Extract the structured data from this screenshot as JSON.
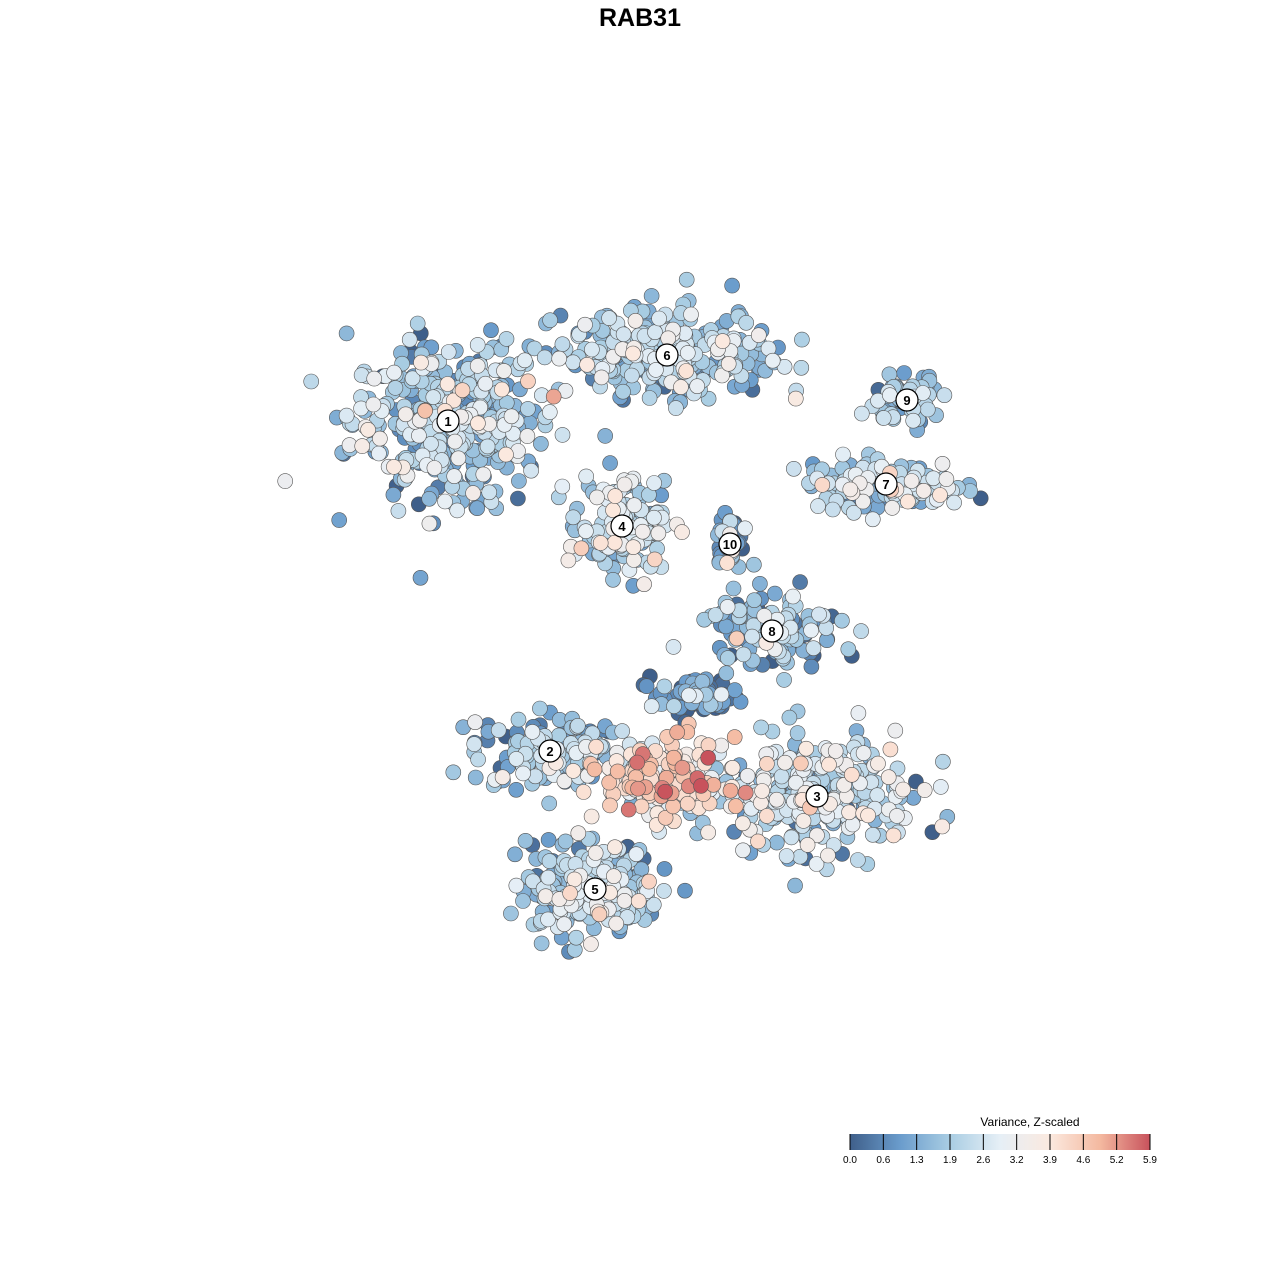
{
  "chart_data": {
    "type": "scatter",
    "title": "RAB31",
    "xlabel": "",
    "ylabel": "",
    "grid": false,
    "axes_visible": false,
    "colorbar": {
      "title": "Variance, Z-scaled",
      "ticks": [
        "0.0",
        "0.6",
        "1.3",
        "1.9",
        "2.6",
        "3.2",
        "3.9",
        "4.6",
        "5.2",
        "5.9"
      ],
      "range": [
        0.0,
        5.9
      ],
      "colors": [
        "#3f5f8a",
        "#6a9ccc",
        "#a9cde3",
        "#e6eff6",
        "#fbe9df",
        "#f4b9a0",
        "#c8525c"
      ],
      "placement": "bottom-right"
    },
    "clusters": [
      {
        "label": "1",
        "x": -6.4,
        "y": 7.3,
        "spread": [
          3.2,
          2.6
        ],
        "n": 420,
        "mean_value": 1.9
      },
      {
        "label": "2",
        "x": -3.0,
        "y": -3.7,
        "spread": [
          2.6,
          1.2
        ],
        "n": 150,
        "mean_value": 1.6
      },
      {
        "label": "3",
        "x": 5.9,
        "y": -5.2,
        "spread": [
          3.2,
          1.9
        ],
        "n": 330,
        "mean_value": 2.2
      },
      {
        "label": "4",
        "x": -0.6,
        "y": 3.8,
        "spread": [
          1.4,
          1.5
        ],
        "n": 150,
        "mean_value": 2.1
      },
      {
        "label": "5",
        "x": -1.5,
        "y": -8.3,
        "spread": [
          2.2,
          1.5
        ],
        "n": 300,
        "mean_value": 1.9
      },
      {
        "label": "6",
        "x": 0.9,
        "y": 9.5,
        "spread": [
          3.6,
          1.4
        ],
        "n": 300,
        "mean_value": 1.9
      },
      {
        "label": "7",
        "x": 8.2,
        "y": 5.2,
        "spread": [
          2.6,
          0.8
        ],
        "n": 150,
        "mean_value": 2.1
      },
      {
        "label": "8",
        "x": 4.4,
        "y": 0.3,
        "spread": [
          2.3,
          1.2
        ],
        "n": 130,
        "mean_value": 1.5
      },
      {
        "label": "9",
        "x": 8.9,
        "y": 8.0,
        "spread": [
          1.1,
          0.8
        ],
        "n": 70,
        "mean_value": 1.6
      },
      {
        "label": "10",
        "x": 3.0,
        "y": 3.2,
        "spread": [
          0.5,
          0.8
        ],
        "n": 40,
        "mean_value": 1.4
      },
      {
        "label": "",
        "x": 0.8,
        "y": -4.6,
        "spread": [
          2.0,
          1.3
        ],
        "n": 200,
        "mean_value": 3.8
      },
      {
        "label": "",
        "x": 1.8,
        "y": -1.9,
        "spread": [
          1.4,
          0.6
        ],
        "n": 90,
        "mean_value": 0.5
      }
    ]
  }
}
